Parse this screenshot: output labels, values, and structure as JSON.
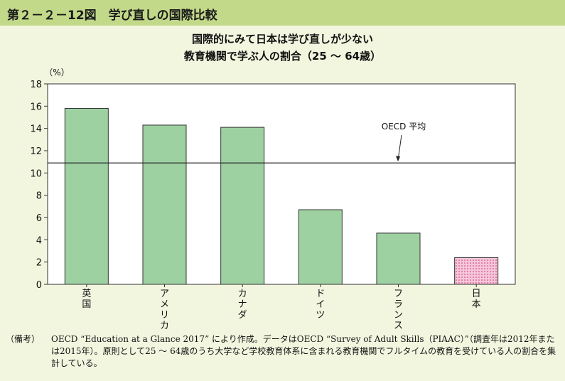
{
  "header": {
    "title": "第２－２－12図　学び直しの国際比較"
  },
  "chart_data": {
    "type": "bar",
    "title": "国際的にみて日本は学び直しが少ない",
    "subtitle": "教育機関で学ぶ人の割合（25 ～ 64歳）",
    "ylabel": "（%）",
    "ylim": [
      0,
      18
    ],
    "yticks": [
      0,
      2,
      4,
      6,
      8,
      10,
      12,
      14,
      16,
      18
    ],
    "categories": [
      "英国",
      "アメリカ",
      "カナダ",
      "ドイツ",
      "フランス",
      "日本"
    ],
    "values": [
      15.8,
      14.3,
      14.1,
      6.7,
      4.6,
      2.4
    ],
    "reference_line": {
      "label": "OECD 平均",
      "value": 10.9
    },
    "colors": {
      "bar": "#9ed1a1",
      "highlight": "#f4c6da",
      "highlight_dots": "#d2336f"
    },
    "highlight_category": "日本",
    "grid": false
  },
  "note": {
    "prefix": "（備考）",
    "text": "OECD “Education at a Glance 2017” により作成。データはOECD “Survey of Adult Skills（PIAAC）”（調査年は2012年または2015年）。原則として25 ～ 64歳のうち大学など学校教育体系に含まれる教育機関でフルタイムの教育を受けている人の割合を集計している。"
  }
}
